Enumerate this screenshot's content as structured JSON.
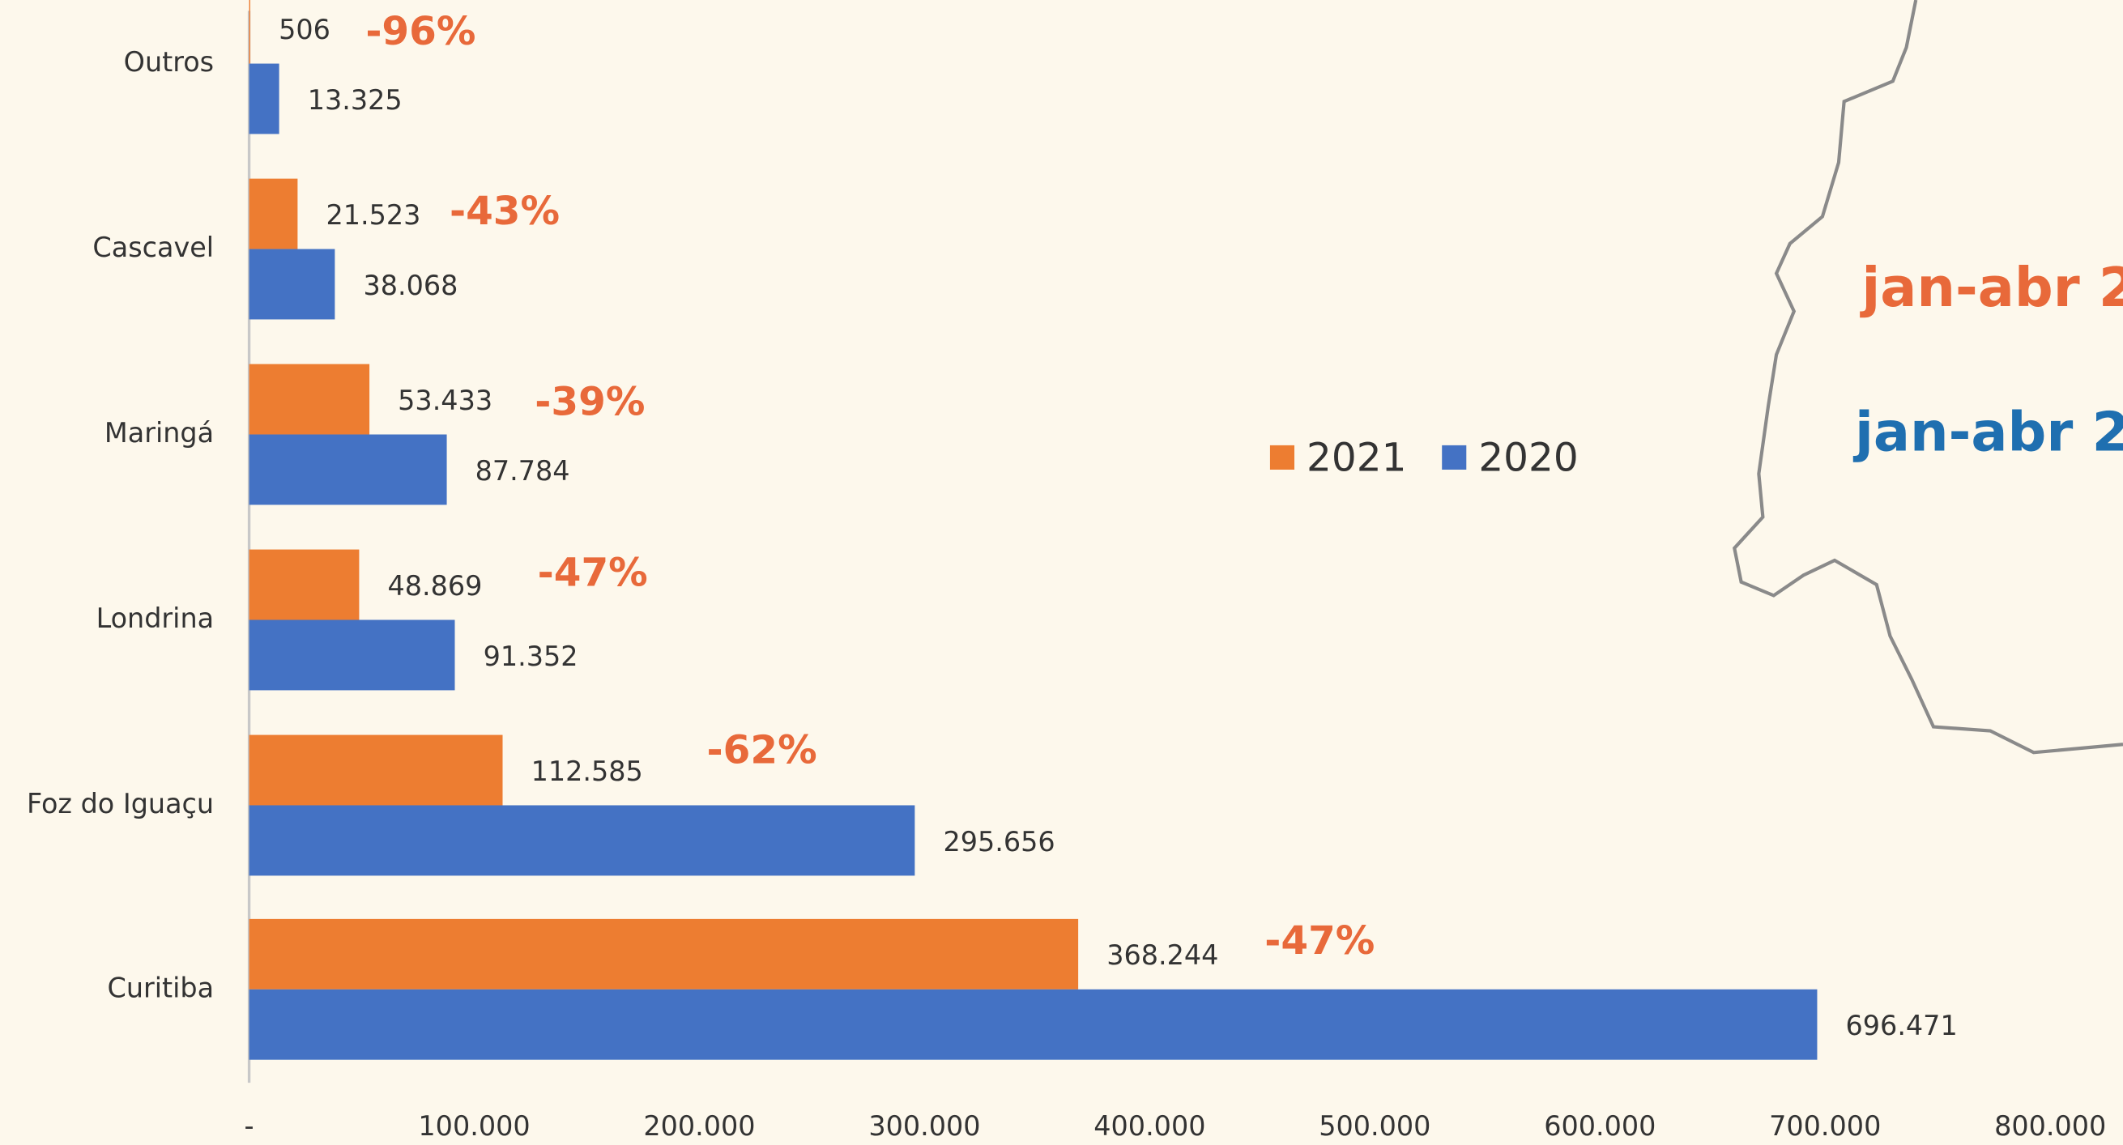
{
  "chart_data": {
    "type": "hbar",
    "categories": [
      "Outros",
      "Cascavel",
      "Maringá",
      "Londrina",
      "Foz do Iguaçu",
      "Curitiba"
    ],
    "series": [
      {
        "name": "2021",
        "color": "#ed7d31",
        "values": [
          506,
          21523,
          53433,
          48869,
          112585,
          368244
        ],
        "value_labels": [
          "506",
          "21.523",
          "53.433",
          "48.869",
          "112.585",
          "368.244"
        ]
      },
      {
        "name": "2020",
        "color": "#4472c4",
        "values": [
          13325,
          38068,
          87784,
          91352,
          295656,
          696471
        ],
        "value_labels": [
          "13.325",
          "38.068",
          "87.784",
          "91.352",
          "295.656",
          "696.471"
        ]
      }
    ],
    "annotations": [
      "-96%",
      "-43%",
      "-39%",
      "-47%",
      "-62%",
      "-47%"
    ],
    "side_labels": [
      {
        "text": "jan-abr 2",
        "color": "#e8693a"
      },
      {
        "text": "jan-abr 2",
        "color": "#1f6fb0"
      }
    ],
    "xlim": [
      0,
      800000
    ],
    "xticks": [
      {
        "value": 0,
        "label": "-"
      },
      {
        "value": 100000,
        "label": "100.000"
      },
      {
        "value": 200000,
        "label": "200.000"
      },
      {
        "value": 300000,
        "label": "300.000"
      },
      {
        "value": 400000,
        "label": "400.000"
      },
      {
        "value": 500000,
        "label": "500.000"
      },
      {
        "value": 600000,
        "label": "600.000"
      },
      {
        "value": 700000,
        "label": "700.000"
      },
      {
        "value": 800000,
        "label": "800.000"
      }
    ],
    "grid": false,
    "legend": "center"
  }
}
